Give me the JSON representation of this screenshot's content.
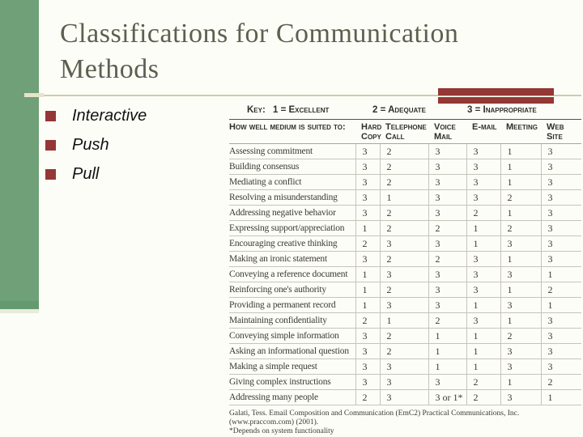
{
  "title": {
    "line1": "Classifications for Communication",
    "line2": "Methods"
  },
  "bullets": [
    "Interactive",
    "Push",
    "Pull"
  ],
  "table": {
    "key": {
      "label": "Key:",
      "excellent": "1 = Excellent",
      "adequate": "2 = Adequate",
      "inappropriate": "3 = Inappropriate"
    },
    "header_label": "How well medium is suited to:",
    "columns": [
      "Hard Copy",
      "Telephone Call",
      "Voice Mail",
      "E-mail",
      "Meeting",
      "Web Site"
    ],
    "rows": [
      {
        "label": "Assessing commitment",
        "values": [
          "3",
          "2",
          "3",
          "3",
          "1",
          "3"
        ]
      },
      {
        "label": "Building consensus",
        "values": [
          "3",
          "2",
          "3",
          "3",
          "1",
          "3"
        ]
      },
      {
        "label": "Mediating a conflict",
        "values": [
          "3",
          "2",
          "3",
          "3",
          "1",
          "3"
        ]
      },
      {
        "label": "Resolving a misunderstanding",
        "values": [
          "3",
          "1",
          "3",
          "3",
          "2",
          "3"
        ]
      },
      {
        "label": "Addressing negative behavior",
        "values": [
          "3",
          "2",
          "3",
          "2",
          "1",
          "3"
        ]
      },
      {
        "label": "Expressing support/appreciation",
        "values": [
          "1",
          "2",
          "2",
          "1",
          "2",
          "3"
        ]
      },
      {
        "label": "Encouraging creative thinking",
        "values": [
          "2",
          "3",
          "3",
          "1",
          "3",
          "3"
        ]
      },
      {
        "label": "Making an ironic statement",
        "values": [
          "3",
          "2",
          "2",
          "3",
          "1",
          "3"
        ]
      },
      {
        "label": "Conveying a reference document",
        "values": [
          "1",
          "3",
          "3",
          "3",
          "3",
          "1"
        ]
      },
      {
        "label": "Reinforcing one's authority",
        "values": [
          "1",
          "2",
          "3",
          "3",
          "1",
          "2"
        ]
      },
      {
        "label": "Providing a permanent record",
        "values": [
          "1",
          "3",
          "3",
          "1",
          "3",
          "1"
        ]
      },
      {
        "label": "Maintaining confidentiality",
        "values": [
          "2",
          "1",
          "2",
          "3",
          "1",
          "3"
        ]
      },
      {
        "label": "Conveying simple information",
        "values": [
          "3",
          "2",
          "1",
          "1",
          "2",
          "3"
        ]
      },
      {
        "label": "Asking an informational question",
        "values": [
          "3",
          "2",
          "1",
          "1",
          "3",
          "3"
        ]
      },
      {
        "label": "Making a simple request",
        "values": [
          "3",
          "3",
          "1",
          "1",
          "3",
          "3"
        ]
      },
      {
        "label": "Giving complex instructions",
        "values": [
          "3",
          "3",
          "3",
          "2",
          "1",
          "2"
        ]
      },
      {
        "label": "Addressing many people",
        "values": [
          "2",
          "3",
          "3 or 1*",
          "2",
          "3",
          "1"
        ]
      }
    ],
    "source_line1": "Galati, Tess. Email Composition and Communication (EmC2) Practical Communications, Inc.",
    "source_line2": "(www.praccom.com) (2001).",
    "footnote": "*Depends on system functionality"
  },
  "colors": {
    "sidebar_green": "#6fa077",
    "accent_red": "#943735",
    "title_text": "#5c604e",
    "divider_tan": "#cfcbac",
    "table_rule": "#c6c4bb",
    "background": "#fdfdf8"
  }
}
